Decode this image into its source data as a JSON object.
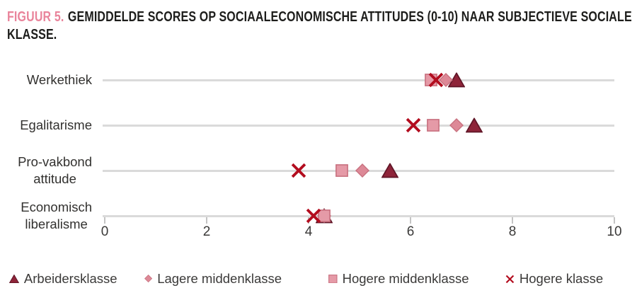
{
  "title": {
    "prefix": "FIGUUR 5.",
    "line1": "GEMIDDELDE SCORES OP SOCIAALECONOMISCHE ATTITUDES (0-10) NAAR SUBJECTIEVE SOCIALE",
    "line2": "KLASSE.",
    "accent_color": "#e9849b"
  },
  "chart_data": {
    "type": "scatter",
    "subtype": "horizontal-dot-plot",
    "title": "FIGUUR 5. GEMIDDELDE SCORES OP SOCIAALECONOMISCHE ATTITUDES (0-10) NAAR SUBJECTIEVE SOCIALE KLASSE.",
    "categories": [
      "Werkethiek",
      "Egalitarisme",
      "Pro-vakbond attitude",
      "Economisch liberalisme"
    ],
    "category_lines": [
      [
        "Werkethiek"
      ],
      [
        "Egalitarisme"
      ],
      [
        "Pro-vakbond",
        "attitude"
      ],
      [
        "Economisch",
        "liberalisme"
      ]
    ],
    "x_ticks": [
      0,
      2,
      4,
      6,
      8,
      10
    ],
    "xlim": [
      0,
      10
    ],
    "grid": "one light gray horizontal line per category",
    "legend_position": "bottom",
    "series": [
      {
        "name": "Arbeidersklasse",
        "marker": "triangle",
        "fill": "#8e2439",
        "stroke": "#601627",
        "values": [
          6.9,
          7.25,
          5.6,
          4.3
        ]
      },
      {
        "name": "Lagere middenklasse",
        "marker": "diamond",
        "fill": "#dd8997",
        "stroke": "#c8717f",
        "values": [
          6.7,
          6.9,
          5.05,
          4.3
        ]
      },
      {
        "name": "Hogere middenklasse",
        "marker": "square",
        "fill": "#e59aa7",
        "stroke": "#c8717f",
        "values": [
          6.4,
          6.45,
          4.65,
          4.3
        ]
      },
      {
        "name": "Hogere klasse",
        "marker": "x",
        "fill": "#b30d1f",
        "stroke": "#b30d1f",
        "values": [
          6.5,
          6.05,
          3.8,
          4.1
        ]
      }
    ],
    "colors": {
      "gridline": "#dadada",
      "axis_text": "#3b3a39",
      "category_text": "#32312f"
    }
  }
}
